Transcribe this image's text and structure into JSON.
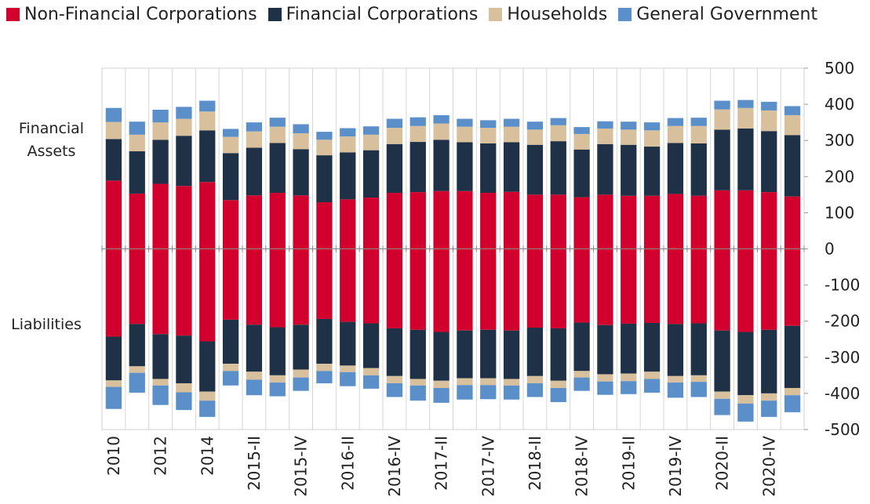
{
  "chart_data": {
    "type": "bar",
    "stacked": true,
    "annotations": [
      "Financial Assets",
      "Liabilities"
    ],
    "categories": [
      "2010",
      null,
      "2012",
      null,
      "2014",
      null,
      "2015-II",
      null,
      "2015-IV",
      null,
      "2016-II",
      null,
      "2016-IV",
      null,
      "2017-II",
      null,
      "2017-IV",
      null,
      "2018-II",
      null,
      "2018-IV",
      null,
      "2019-II",
      null,
      "2019-IV",
      null,
      "2020-II",
      null,
      "2020-IV",
      null
    ],
    "series": [
      {
        "name": "Non-Financial Corporations",
        "color": "#d2002d",
        "assets": [
          189,
          153,
          180,
          174,
          185,
          135,
          148,
          155,
          148,
          129,
          137,
          142,
          155,
          157,
          160,
          160,
          155,
          158,
          150,
          150,
          143,
          150,
          147,
          147,
          152,
          147,
          162,
          162,
          157,
          145
        ],
        "liabilities": [
          -243,
          -208,
          -236,
          -240,
          -256,
          -196,
          -210,
          -217,
          -210,
          -194,
          -202,
          -206,
          -220,
          -224,
          -230,
          -226,
          -224,
          -226,
          -218,
          -220,
          -204,
          -211,
          -207,
          -205,
          -208,
          -206,
          -226,
          -230,
          -224,
          -213
        ]
      },
      {
        "name": "Financial Corporations",
        "color": "#1f3146",
        "assets": [
          115,
          117,
          122,
          139,
          143,
          130,
          132,
          138,
          128,
          130,
          130,
          131,
          135,
          139,
          142,
          135,
          137,
          137,
          138,
          148,
          132,
          140,
          141,
          136,
          141,
          145,
          168,
          171,
          169,
          170
        ],
        "liabilities": [
          -121,
          -117,
          -124,
          -132,
          -139,
          -122,
          -130,
          -133,
          -124,
          -124,
          -121,
          -124,
          -132,
          -136,
          -135,
          -132,
          -134,
          -134,
          -134,
          -145,
          -134,
          -136,
          -138,
          -135,
          -144,
          -144,
          -169,
          -175,
          -176,
          -172
        ]
      },
      {
        "name": "Households",
        "color": "#d8c09c",
        "assets": [
          47,
          46,
          48,
          47,
          52,
          45,
          45,
          45,
          44,
          43,
          44,
          43,
          45,
          44,
          45,
          43,
          43,
          43,
          42,
          44,
          43,
          43,
          42,
          45,
          47,
          48,
          56,
          57,
          57,
          55
        ],
        "liabilities": [
          -18,
          -18,
          -18,
          -25,
          -25,
          -20,
          -22,
          -20,
          -22,
          -20,
          -18,
          -20,
          -20,
          -18,
          -20,
          -19,
          -19,
          -18,
          -20,
          -20,
          -18,
          -20,
          -21,
          -20,
          -18,
          -18,
          -20,
          -23,
          -20,
          -20
        ]
      },
      {
        "name": "General Government",
        "color": "#5b8fc9",
        "assets": [
          39,
          36,
          35,
          33,
          30,
          22,
          25,
          25,
          25,
          22,
          23,
          23,
          25,
          24,
          23,
          22,
          21,
          22,
          22,
          20,
          19,
          20,
          22,
          22,
          22,
          23,
          24,
          22,
          24,
          25
        ],
        "liabilities": [
          -61,
          -55,
          -54,
          -49,
          -45,
          -40,
          -43,
          -38,
          -37,
          -34,
          -39,
          -37,
          -38,
          -42,
          -41,
          -40,
          -39,
          -39,
          -38,
          -39,
          -37,
          -37,
          -36,
          -38,
          -42,
          -42,
          -45,
          -50,
          -45,
          -47
        ]
      }
    ],
    "ylim": [
      -500,
      500
    ],
    "yticks": [
      -500,
      -400,
      -300,
      -200,
      -100,
      0,
      100,
      200,
      300,
      400,
      500
    ],
    "y_axis_side": "right",
    "legend": "top"
  }
}
